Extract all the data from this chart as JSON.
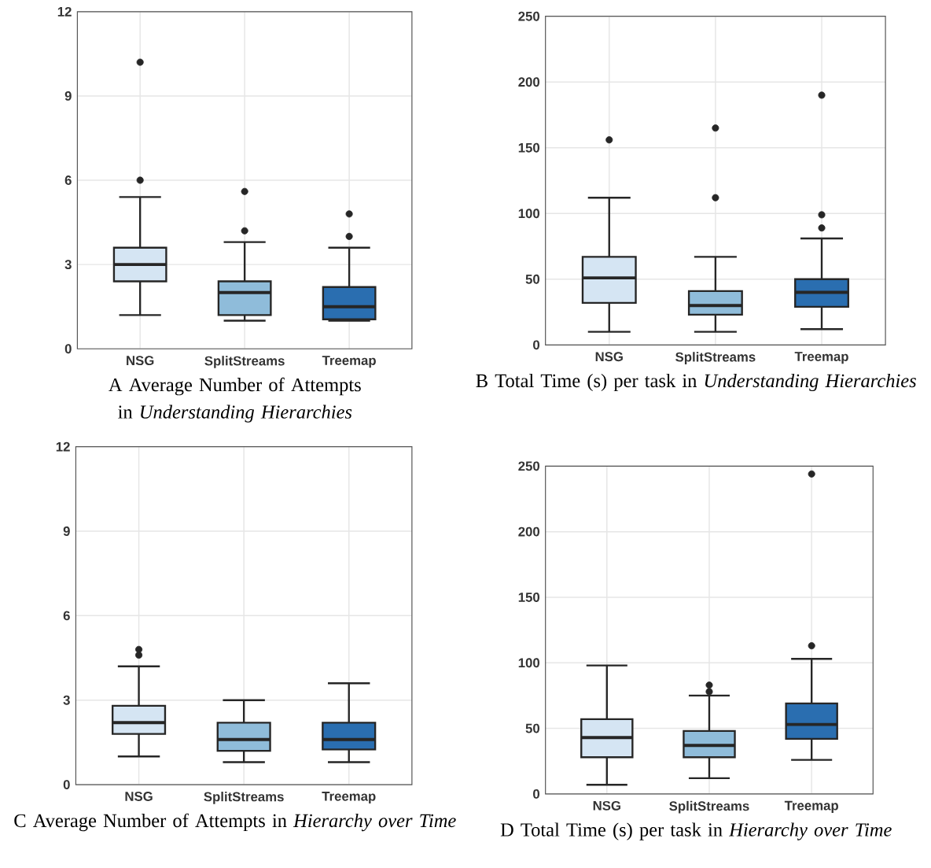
{
  "chart_data": [
    {
      "type": "box",
      "title": "A Average Number of Attempts in *Understanding Hierarchies*",
      "categories": [
        "NSG",
        "SplitStreams",
        "Treemap"
      ],
      "colors": [
        "#d5e5f3",
        "#8fbcda",
        "#2a6eb0"
      ],
      "boxes": [
        {
          "low": 1.2,
          "q1": 2.4,
          "median": 3.0,
          "q3": 3.6,
          "high": 5.4,
          "outliers": [
            6.0,
            10.2
          ]
        },
        {
          "low": 1.0,
          "q1": 1.2,
          "median": 2.0,
          "q3": 2.4,
          "high": 3.8,
          "outliers": [
            4.2,
            5.6
          ]
        },
        {
          "low": 1.0,
          "q1": 1.05,
          "median": 1.5,
          "q3": 2.2,
          "high": 3.6,
          "outliers": [
            4.0,
            4.8
          ]
        }
      ],
      "ylim": [
        0,
        12
      ],
      "yticks": [
        0,
        3,
        6,
        9,
        12
      ],
      "grid": true
    },
    {
      "type": "box",
      "title": "B Total Time (s) per task in *Understanding Hierarchies*",
      "categories": [
        "NSG",
        "SplitStreams",
        "Treemap"
      ],
      "colors": [
        "#d5e5f3",
        "#8fbcda",
        "#2a6eb0"
      ],
      "boxes": [
        {
          "low": 10,
          "q1": 32,
          "median": 51,
          "q3": 67,
          "high": 112,
          "outliers": [
            156
          ]
        },
        {
          "low": 10,
          "q1": 23,
          "median": 30,
          "q3": 41,
          "high": 67,
          "outliers": [
            112,
            165
          ]
        },
        {
          "low": 12,
          "q1": 29,
          "median": 40,
          "q3": 50,
          "high": 81,
          "outliers": [
            89,
            99,
            190
          ]
        }
      ],
      "ylim": [
        0,
        250
      ],
      "yticks": [
        0,
        50,
        100,
        150,
        200,
        250
      ],
      "grid": true
    },
    {
      "type": "box",
      "title": "C Average Number of Attempts in *Hierarchy over Time*",
      "categories": [
        "NSG",
        "SplitStreams",
        "Treemap"
      ],
      "colors": [
        "#d5e5f3",
        "#8fbcda",
        "#2a6eb0"
      ],
      "boxes": [
        {
          "low": 1.0,
          "q1": 1.8,
          "median": 2.2,
          "q3": 2.8,
          "high": 4.2,
          "outliers": [
            4.6,
            4.8
          ]
        },
        {
          "low": 0.8,
          "q1": 1.2,
          "median": 1.6,
          "q3": 2.2,
          "high": 3.0
        },
        {
          "low": 0.8,
          "q1": 1.25,
          "median": 1.6,
          "q3": 2.2,
          "high": 3.6
        }
      ],
      "ylim": [
        0,
        12
      ],
      "yticks": [
        0,
        3,
        6,
        9,
        12
      ],
      "grid": true
    },
    {
      "type": "box",
      "title": "D Total Time (s) per task in *Hierarchy over Time*",
      "categories": [
        "NSG",
        "SplitStreams",
        "Treemap"
      ],
      "colors": [
        "#d5e5f3",
        "#8fbcda",
        "#2a6eb0"
      ],
      "boxes": [
        {
          "low": 7,
          "q1": 28,
          "median": 43,
          "q3": 57,
          "high": 98
        },
        {
          "low": 12,
          "q1": 28,
          "median": 37,
          "q3": 48,
          "high": 75,
          "outliers": [
            78,
            83
          ]
        },
        {
          "low": 26,
          "q1": 42,
          "median": 53,
          "q3": 69,
          "high": 103,
          "outliers": [
            113,
            244
          ]
        }
      ],
      "ylim": [
        0,
        250
      ],
      "yticks": [
        0,
        50,
        100,
        150,
        200,
        250
      ],
      "grid": true
    }
  ]
}
